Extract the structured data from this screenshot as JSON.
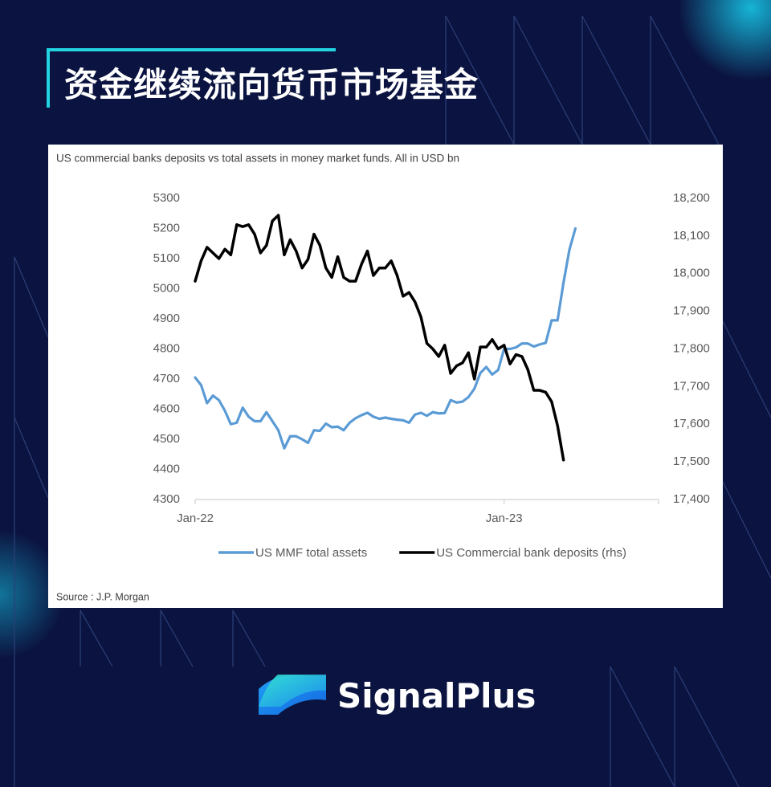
{
  "header": {
    "title": "资金继续流向货币市场基金"
  },
  "chart_data": {
    "type": "line",
    "title": "US commercial banks deposits vs total assets in money market funds. All in USD bn",
    "source": "Source : J.P. Morgan",
    "categories": [
      "Jan-22",
      null,
      null,
      null,
      null,
      null,
      null,
      null,
      null,
      null,
      null,
      null,
      null,
      null,
      null,
      null,
      null,
      null,
      null,
      null,
      null,
      null,
      null,
      null,
      null,
      null,
      null,
      null,
      null,
      null,
      null,
      null,
      null,
      null,
      null,
      null,
      null,
      null,
      null,
      null,
      null,
      null,
      null,
      null,
      null,
      null,
      null,
      null,
      null,
      null,
      null,
      null,
      "Jan-23",
      null,
      null,
      null,
      null,
      null,
      null,
      null,
      null,
      null,
      null,
      null,
      null,
      null,
      null,
      null,
      null,
      null,
      null,
      null,
      null,
      null,
      null,
      null,
      null,
      null
    ],
    "ylim": [
      4300,
      5300
    ],
    "yticks": [
      4300,
      4400,
      4500,
      4600,
      4700,
      4800,
      4900,
      5000,
      5100,
      5200,
      5300
    ],
    "y2lim": [
      17400,
      18200
    ],
    "y2ticks": [
      {
        "value": 17400,
        "label": "17,400"
      },
      {
        "value": 17500,
        "label": "17,500"
      },
      {
        "value": 17600,
        "label": "17,600"
      },
      {
        "value": 17700,
        "label": "17,700"
      },
      {
        "value": 17800,
        "label": "17,800"
      },
      {
        "value": 17900,
        "label": "17,900"
      },
      {
        "value": 18000,
        "label": "18,000"
      },
      {
        "value": 18100,
        "label": "18,100"
      },
      {
        "value": 18200,
        "label": "18,200"
      }
    ],
    "grid": false,
    "legend": "bottom",
    "series": [
      {
        "name": "US MMF total assets",
        "color": "#5b9bd5",
        "values": [
          4705,
          4680,
          4620,
          4645,
          4630,
          4595,
          4550,
          4555,
          4605,
          4575,
          4560,
          4560,
          4590,
          4560,
          4530,
          4470,
          4510,
          4510,
          4500,
          4488,
          4530,
          4528,
          4552,
          4540,
          4542,
          4530,
          4555,
          4570,
          4580,
          4588,
          4575,
          4568,
          4572,
          4568,
          4565,
          4563,
          4555,
          4582,
          4588,
          4578,
          4590,
          4586,
          4587,
          4630,
          4622,
          4625,
          4640,
          4668,
          4720,
          4740,
          4715,
          4730,
          4800,
          4800,
          4805,
          4818,
          4818,
          4808,
          4815,
          4820,
          4895,
          4895,
          5020,
          5130,
          5200,
          null,
          null,
          null,
          null,
          null,
          null,
          null,
          null,
          null,
          null,
          null,
          null,
          null
        ]
      },
      {
        "name": "US Commercial bank deposits (rhs)",
        "color": "#000000",
        "axis": "y2",
        "values": [
          17980,
          18034,
          18070,
          18055,
          18040,
          18065,
          18050,
          18130,
          18125,
          18130,
          18105,
          18055,
          18075,
          18140,
          18155,
          18050,
          18090,
          18060,
          18015,
          18038,
          18105,
          18075,
          18015,
          17990,
          18045,
          17990,
          17980,
          17980,
          18025,
          18060,
          17995,
          18015,
          18015,
          18034,
          17995,
          17940,
          17950,
          17925,
          17885,
          17815,
          17800,
          17780,
          17810,
          17735,
          17755,
          17763,
          17790,
          17720,
          17805,
          17805,
          17825,
          17800,
          17810,
          17760,
          17785,
          17780,
          17745,
          17690,
          17690,
          17685,
          17660,
          17596,
          17505,
          null,
          null,
          null,
          null,
          null,
          null,
          null,
          null,
          null,
          null,
          null,
          null,
          null,
          null,
          null
        ]
      }
    ]
  },
  "footer": {
    "brand": "SignalPlus"
  }
}
